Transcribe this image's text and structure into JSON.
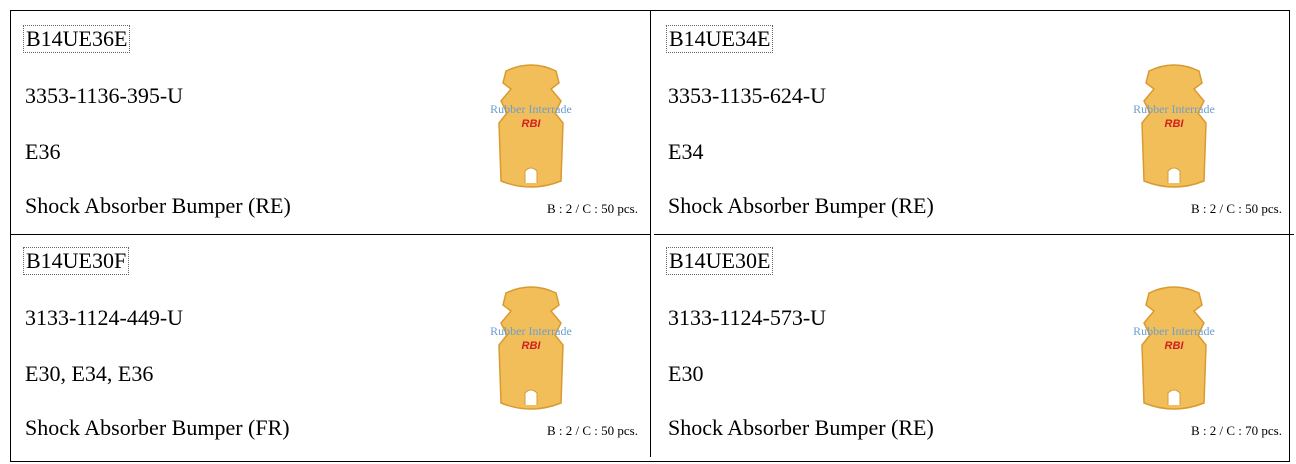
{
  "table": {
    "cells": [
      {
        "code": "B14UE36E",
        "part_number": "3353-1136-395-U",
        "model": "E36",
        "description": "Shock Absorber Bumper (RE)",
        "packing": "B : 2 / C : 50 pcs.",
        "watermark": "Rubber Interrade",
        "logo": "RBI"
      },
      {
        "code": "B14UE34E",
        "part_number": "3353-1135-624-U",
        "model": "E34",
        "description": "Shock Absorber Bumper (RE)",
        "packing": "B : 2 / C : 50 pcs.",
        "watermark": "Rubber Interrade",
        "logo": "RBI"
      },
      {
        "code": "B14UE30F",
        "part_number": "3133-1124-449-U",
        "model": "E30, E34, E36",
        "description": "Shock Absorber Bumper (FR)",
        "packing": "B : 2 / C : 50 pcs.",
        "watermark": "Rubber Interrade",
        "logo": "RBI"
      },
      {
        "code": "B14UE30E",
        "part_number": "3133-1124-573-U",
        "model": "E30",
        "description": "Shock Absorber Bumper (RE)",
        "packing": "B : 2 / C : 70 pcs.",
        "watermark": "Rubber Interrade",
        "logo": "RBI"
      }
    ]
  }
}
